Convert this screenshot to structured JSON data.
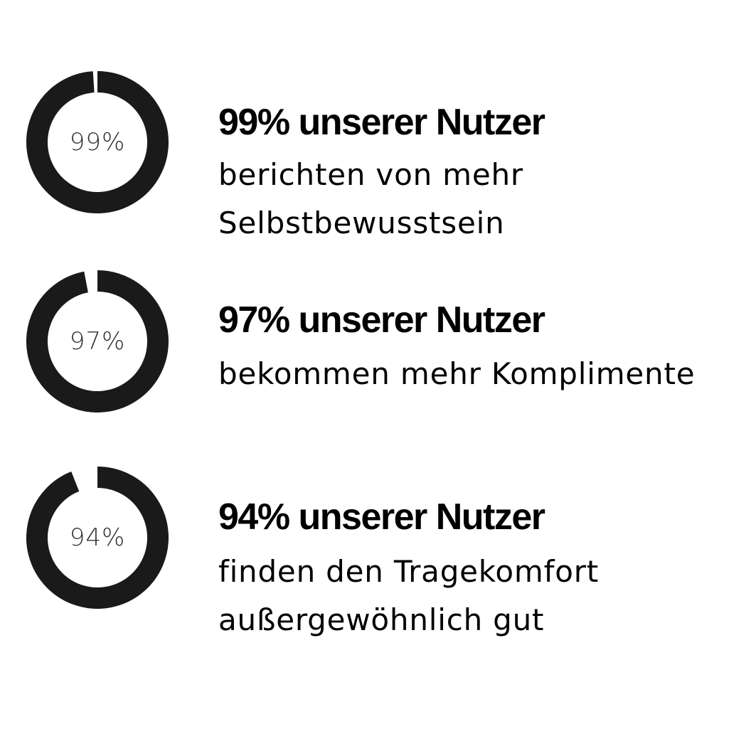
{
  "colors": {
    "ring": "#1a1a1a",
    "text": "#000000",
    "background": "#ffffff"
  },
  "chart_data": [
    {
      "type": "pie",
      "variant": "donut",
      "value": 99,
      "max": 100,
      "center_label": "99%"
    },
    {
      "type": "pie",
      "variant": "donut",
      "value": 97,
      "max": 100,
      "center_label": "97%"
    },
    {
      "type": "pie",
      "variant": "donut",
      "value": 94,
      "max": 100,
      "center_label": "94%"
    }
  ],
  "stats": [
    {
      "headline": "99% unserer Nutzer",
      "lines": [
        "berichten von mehr",
        "Selbstbewusstsein"
      ]
    },
    {
      "headline": "97% unserer Nutzer",
      "lines": [
        "bekommen mehr Komplimente"
      ]
    },
    {
      "headline": "94% unserer Nutzer",
      "lines": [
        "finden den Tragekomfort",
        "außergewöhnlich gut"
      ]
    }
  ]
}
